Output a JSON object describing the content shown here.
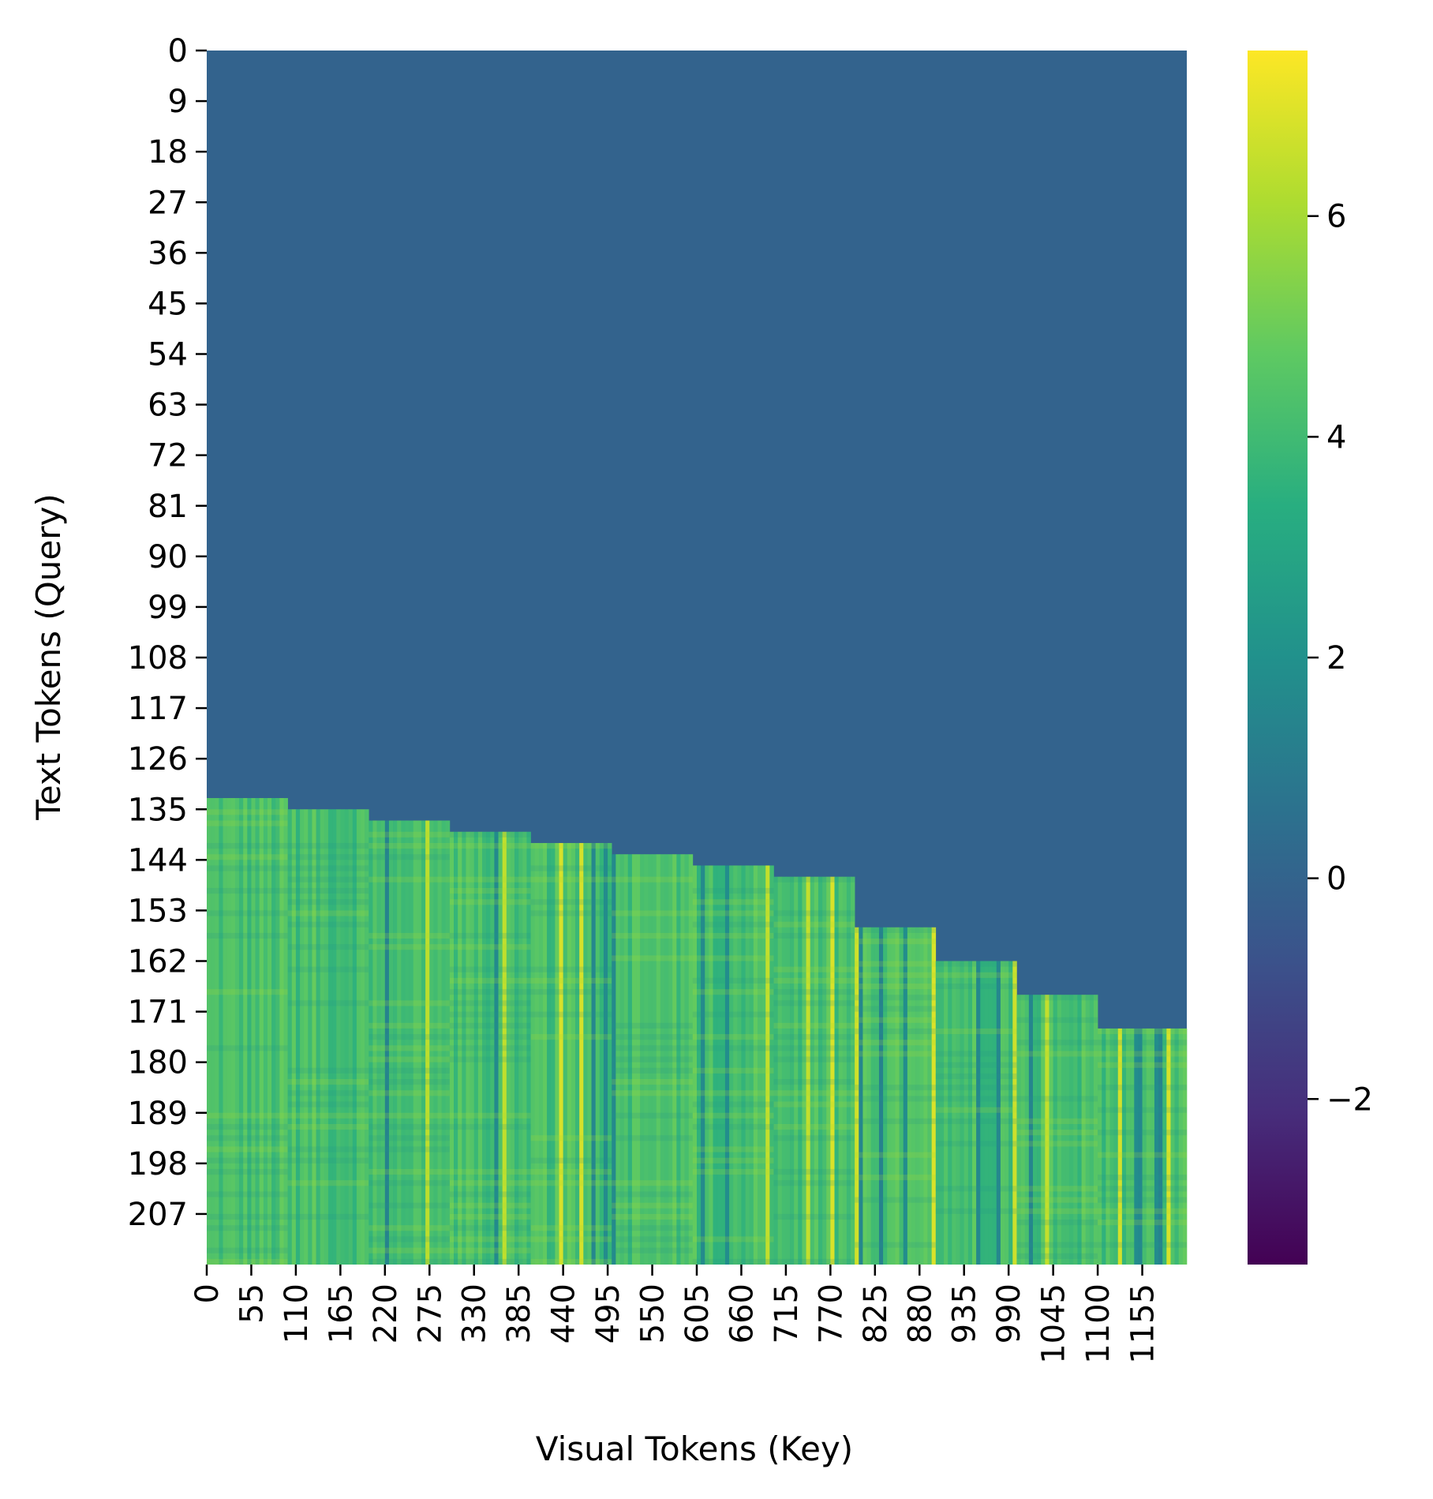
{
  "chart_data": {
    "type": "heatmap",
    "title": "",
    "xlabel": "Visual Tokens (Key)",
    "ylabel": "Text Tokens (Query)",
    "x_range": [
      0,
      1210
    ],
    "y_range": [
      0,
      216
    ],
    "x_ticks": [
      0,
      55,
      110,
      165,
      220,
      275,
      330,
      385,
      440,
      495,
      550,
      605,
      660,
      715,
      770,
      825,
      880,
      935,
      990,
      1045,
      1100,
      1155
    ],
    "y_ticks": [
      0,
      9,
      18,
      27,
      36,
      45,
      54,
      63,
      72,
      81,
      90,
      99,
      108,
      117,
      126,
      135,
      144,
      153,
      162,
      171,
      180,
      189,
      198,
      207
    ],
    "colormap": "viridis",
    "color_range": [
      -3.5,
      7.5
    ],
    "colorbar_ticks": [
      6,
      4,
      2,
      0,
      -2
    ],
    "colorbar_tick_labels": [
      "6",
      "4",
      "2",
      "0",
      "−2"
    ],
    "masked_value": 0,
    "steps": [
      {
        "x_start": 0,
        "x_end": 100,
        "row_start": 133
      },
      {
        "x_start": 100,
        "x_end": 200,
        "row_start": 135
      },
      {
        "x_start": 200,
        "x_end": 300,
        "row_start": 137
      },
      {
        "x_start": 300,
        "x_end": 400,
        "row_start": 139
      },
      {
        "x_start": 400,
        "x_end": 500,
        "row_start": 141
      },
      {
        "x_start": 500,
        "x_end": 600,
        "row_start": 143
      },
      {
        "x_start": 600,
        "x_end": 700,
        "row_start": 145
      },
      {
        "x_start": 700,
        "x_end": 800,
        "row_start": 147
      },
      {
        "x_start": 800,
        "x_end": 900,
        "row_start": 156
      },
      {
        "x_start": 900,
        "x_end": 1000,
        "row_start": 162
      },
      {
        "x_start": 1000,
        "x_end": 1100,
        "row_start": 168
      },
      {
        "x_start": 1100,
        "x_end": 1210,
        "row_start": 174
      }
    ],
    "active_value_range": [
      2.5,
      5.5
    ]
  }
}
